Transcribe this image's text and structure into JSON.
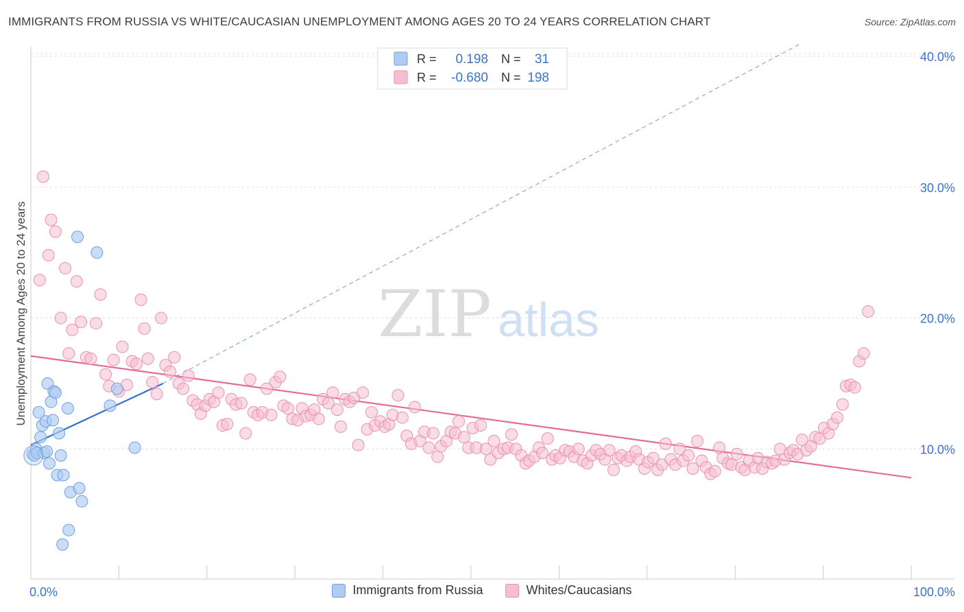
{
  "header": {
    "title": "IMMIGRANTS FROM RUSSIA VS WHITE/CAUCASIAN UNEMPLOYMENT AMONG AGES 20 TO 24 YEARS CORRELATION CHART",
    "source": "Source: ZipAtlas.com"
  },
  "watermark": {
    "zip": "ZIP",
    "atlas": "atlas"
  },
  "legend_stats": {
    "rows": [
      {
        "r_label": "R =",
        "r_value": "0.198",
        "n_label": "N =",
        "n_value": "31"
      },
      {
        "r_label": "R =",
        "r_value": "-0.680",
        "n_label": "N =",
        "n_value": "198"
      }
    ]
  },
  "colors": {
    "blue_fill": "#aecbf3",
    "blue_stroke": "#6f9fe0",
    "blue_line": "#2f6fd0",
    "pink_fill": "#f6bfd0",
    "pink_stroke": "#ec8fb0",
    "pink_line": "#e46b98",
    "accent_text": "#3a74c8",
    "grid": "#dddddd"
  },
  "chart_data": {
    "type": "scatter",
    "title": "IMMIGRANTS FROM RUSSIA VS WHITE/CAUCASIAN UNEMPLOYMENT AMONG AGES 20 TO 24 YEARS CORRELATION CHART",
    "xlabel": "",
    "ylabel": "Unemployment Among Ages 20 to 24 years",
    "xlim": [
      0,
      100
    ],
    "ylim": [
      0,
      42
    ],
    "x_tick_labels": [
      "0.0%",
      "100.0%"
    ],
    "y_ticks": [
      10,
      20,
      30,
      40
    ],
    "y_tick_labels": [
      "10.0%",
      "20.0%",
      "30.0%",
      "40.0%"
    ],
    "grid": true,
    "legend_placement": "bottom-center",
    "series": [
      {
        "name": "Immigrants from Russia",
        "color": "#aecbf3",
        "trend": {
          "x": [
            0,
            15
          ],
          "y": [
            10.3,
            15.0
          ],
          "dashed_extension_to": [
            100,
            41.0
          ]
        },
        "points": [
          [
            0.2,
            9.6
          ],
          [
            0.4,
            9.5
          ],
          [
            0.6,
            10.0
          ],
          [
            0.7,
            9.7
          ],
          [
            0.9,
            12.8
          ],
          [
            1.1,
            10.9
          ],
          [
            1.3,
            11.8
          ],
          [
            1.5,
            9.7
          ],
          [
            1.7,
            12.1
          ],
          [
            1.8,
            9.8
          ],
          [
            1.9,
            15.0
          ],
          [
            2.1,
            8.9
          ],
          [
            2.3,
            13.6
          ],
          [
            2.5,
            12.2
          ],
          [
            2.6,
            14.4
          ],
          [
            2.8,
            14.3
          ],
          [
            3.0,
            8.0
          ],
          [
            3.2,
            11.2
          ],
          [
            3.4,
            9.5
          ],
          [
            3.6,
            2.7
          ],
          [
            3.7,
            8.0
          ],
          [
            4.2,
            13.1
          ],
          [
            4.3,
            3.8
          ],
          [
            4.5,
            6.7
          ],
          [
            5.3,
            26.2
          ],
          [
            5.5,
            7.0
          ],
          [
            5.8,
            6.0
          ],
          [
            7.5,
            25.0
          ],
          [
            9.0,
            13.3
          ],
          [
            9.8,
            14.6
          ],
          [
            11.8,
            10.1
          ]
        ]
      },
      {
        "name": "Whites/Caucasians",
        "color": "#f6bfd0",
        "trend": {
          "x": [
            0,
            100
          ],
          "y": [
            17.1,
            7.8
          ]
        },
        "points": [
          [
            1.0,
            22.9
          ],
          [
            1.4,
            30.8
          ],
          [
            2.0,
            24.8
          ],
          [
            2.3,
            27.5
          ],
          [
            2.8,
            26.6
          ],
          [
            3.4,
            20.0
          ],
          [
            3.9,
            23.8
          ],
          [
            4.3,
            17.3
          ],
          [
            4.7,
            19.1
          ],
          [
            5.2,
            22.8
          ],
          [
            5.7,
            19.7
          ],
          [
            6.3,
            17.0
          ],
          [
            6.8,
            16.9
          ],
          [
            7.4,
            19.6
          ],
          [
            7.9,
            21.8
          ],
          [
            8.5,
            15.7
          ],
          [
            8.9,
            14.8
          ],
          [
            9.4,
            16.8
          ],
          [
            10.0,
            14.4
          ],
          [
            10.4,
            17.8
          ],
          [
            10.9,
            14.9
          ],
          [
            11.5,
            16.7
          ],
          [
            12.0,
            16.5
          ],
          [
            12.5,
            21.4
          ],
          [
            12.9,
            19.2
          ],
          [
            13.3,
            16.9
          ],
          [
            13.8,
            15.1
          ],
          [
            14.3,
            14.2
          ],
          [
            14.8,
            20.0
          ],
          [
            15.3,
            16.4
          ],
          [
            15.8,
            15.9
          ],
          [
            16.3,
            17.0
          ],
          [
            16.8,
            15.0
          ],
          [
            17.3,
            14.6
          ],
          [
            17.9,
            15.6
          ],
          [
            18.4,
            13.7
          ],
          [
            18.9,
            13.4
          ],
          [
            19.3,
            12.7
          ],
          [
            19.8,
            13.3
          ],
          [
            20.3,
            13.8
          ],
          [
            20.8,
            13.6
          ],
          [
            21.3,
            14.3
          ],
          [
            21.8,
            11.8
          ],
          [
            22.3,
            11.9
          ],
          [
            22.8,
            13.8
          ],
          [
            23.3,
            13.4
          ],
          [
            23.9,
            13.5
          ],
          [
            24.4,
            11.2
          ],
          [
            24.9,
            15.3
          ],
          [
            25.3,
            12.8
          ],
          [
            25.8,
            12.6
          ],
          [
            26.3,
            12.8
          ],
          [
            26.8,
            14.6
          ],
          [
            27.3,
            12.6
          ],
          [
            27.8,
            15.1
          ],
          [
            28.3,
            15.5
          ],
          [
            28.7,
            13.3
          ],
          [
            29.2,
            13.1
          ],
          [
            29.7,
            12.3
          ],
          [
            30.3,
            12.2
          ],
          [
            30.8,
            13.1
          ],
          [
            31.2,
            12.5
          ],
          [
            31.8,
            12.6
          ],
          [
            32.2,
            13.0
          ],
          [
            32.7,
            12.3
          ],
          [
            33.2,
            13.8
          ],
          [
            33.8,
            13.5
          ],
          [
            34.3,
            14.3
          ],
          [
            34.8,
            13.0
          ],
          [
            35.2,
            11.7
          ],
          [
            35.7,
            13.8
          ],
          [
            36.2,
            13.6
          ],
          [
            36.7,
            13.9
          ],
          [
            37.2,
            10.3
          ],
          [
            37.7,
            14.3
          ],
          [
            38.2,
            11.5
          ],
          [
            38.7,
            12.8
          ],
          [
            39.1,
            11.8
          ],
          [
            39.7,
            12.1
          ],
          [
            40.2,
            11.7
          ],
          [
            40.7,
            11.9
          ],
          [
            41.1,
            12.6
          ],
          [
            41.7,
            14.1
          ],
          [
            42.2,
            12.4
          ],
          [
            42.7,
            11.0
          ],
          [
            43.2,
            10.4
          ],
          [
            43.6,
            13.2
          ],
          [
            44.2,
            10.6
          ],
          [
            44.7,
            11.3
          ],
          [
            45.2,
            10.1
          ],
          [
            45.7,
            11.2
          ],
          [
            46.2,
            9.4
          ],
          [
            46.6,
            10.2
          ],
          [
            47.2,
            10.6
          ],
          [
            47.7,
            11.3
          ],
          [
            48.2,
            11.2
          ],
          [
            48.6,
            12.1
          ],
          [
            49.2,
            10.9
          ],
          [
            49.7,
            10.1
          ],
          [
            50.2,
            11.6
          ],
          [
            50.6,
            10.1
          ],
          [
            51.1,
            11.8
          ],
          [
            51.7,
            10.0
          ],
          [
            52.2,
            9.2
          ],
          [
            52.6,
            10.6
          ],
          [
            53.1,
            9.7
          ],
          [
            53.7,
            10.0
          ],
          [
            54.2,
            10.1
          ],
          [
            54.6,
            11.1
          ],
          [
            55.1,
            10.0
          ],
          [
            55.7,
            9.5
          ],
          [
            56.2,
            8.9
          ],
          [
            56.6,
            9.1
          ],
          [
            57.2,
            9.4
          ],
          [
            57.7,
            10.1
          ],
          [
            58.1,
            9.7
          ],
          [
            58.7,
            10.8
          ],
          [
            59.2,
            9.2
          ],
          [
            59.6,
            9.5
          ],
          [
            60.1,
            9.3
          ],
          [
            60.7,
            9.9
          ],
          [
            61.2,
            9.8
          ],
          [
            61.7,
            9.4
          ],
          [
            62.2,
            10.0
          ],
          [
            62.7,
            9.1
          ],
          [
            63.2,
            8.9
          ],
          [
            63.7,
            9.5
          ],
          [
            64.2,
            9.9
          ],
          [
            64.7,
            9.6
          ],
          [
            65.2,
            9.2
          ],
          [
            65.7,
            9.9
          ],
          [
            66.2,
            8.4
          ],
          [
            66.7,
            9.3
          ],
          [
            67.1,
            9.5
          ],
          [
            67.7,
            9.1
          ],
          [
            68.1,
            9.4
          ],
          [
            68.7,
            9.8
          ],
          [
            69.1,
            9.2
          ],
          [
            69.7,
            8.5
          ],
          [
            70.1,
            9.0
          ],
          [
            70.7,
            9.3
          ],
          [
            71.2,
            8.4
          ],
          [
            71.7,
            8.8
          ],
          [
            72.1,
            10.4
          ],
          [
            72.7,
            9.2
          ],
          [
            73.2,
            8.8
          ],
          [
            73.7,
            10.0
          ],
          [
            74.1,
            9.1
          ],
          [
            74.7,
            9.5
          ],
          [
            75.2,
            8.5
          ],
          [
            75.7,
            10.6
          ],
          [
            76.2,
            9.1
          ],
          [
            76.7,
            8.6
          ],
          [
            77.2,
            8.1
          ],
          [
            77.7,
            8.3
          ],
          [
            78.2,
            10.1
          ],
          [
            78.6,
            9.3
          ],
          [
            79.2,
            8.9
          ],
          [
            79.6,
            8.8
          ],
          [
            80.2,
            9.6
          ],
          [
            80.7,
            8.6
          ],
          [
            81.1,
            8.4
          ],
          [
            81.6,
            9.1
          ],
          [
            82.2,
            8.6
          ],
          [
            82.6,
            9.3
          ],
          [
            83.1,
            8.5
          ],
          [
            83.6,
            9.0
          ],
          [
            84.2,
            8.9
          ],
          [
            84.6,
            9.1
          ],
          [
            85.1,
            10.0
          ],
          [
            85.6,
            9.2
          ],
          [
            86.2,
            9.7
          ],
          [
            86.6,
            9.9
          ],
          [
            87.1,
            9.6
          ],
          [
            87.6,
            10.7
          ],
          [
            88.1,
            9.9
          ],
          [
            88.6,
            10.2
          ],
          [
            89.1,
            10.9
          ],
          [
            89.6,
            10.8
          ],
          [
            90.1,
            11.6
          ],
          [
            90.6,
            11.2
          ],
          [
            91.1,
            11.9
          ],
          [
            91.6,
            12.4
          ],
          [
            92.2,
            13.4
          ],
          [
            92.6,
            14.8
          ],
          [
            93.1,
            14.9
          ],
          [
            93.6,
            14.7
          ],
          [
            94.1,
            16.7
          ],
          [
            94.6,
            17.3
          ],
          [
            95.1,
            20.5
          ]
        ]
      }
    ]
  },
  "bottom_legend": {
    "items": [
      {
        "label": "Immigrants from Russia"
      },
      {
        "label": "Whites/Caucasians"
      }
    ]
  }
}
